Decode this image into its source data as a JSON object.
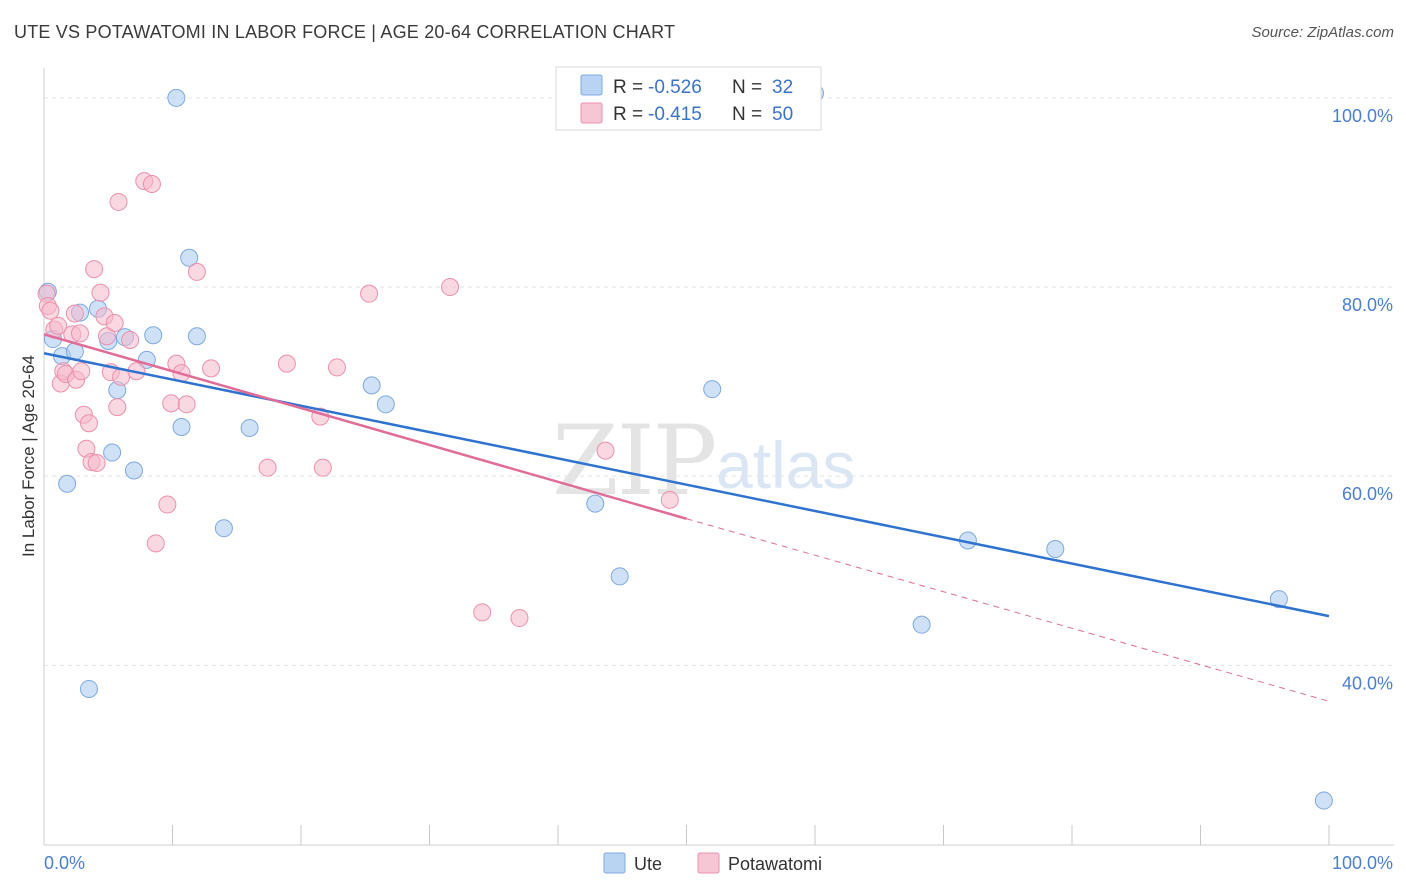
{
  "header": {
    "title": "UTE VS POTAWATOMI IN LABOR FORCE | AGE 20-64 CORRELATION CHART",
    "source": "Source: ZipAtlas.com"
  },
  "watermark": {
    "zip": "ZIP",
    "atlas": "atlas"
  },
  "legend": {
    "items": [
      {
        "r_label": "R = ",
        "r_value": "-0.526",
        "n_label": "N = ",
        "n_value": "32",
        "color": "#a8c8f0"
      },
      {
        "r_label": "R = ",
        "r_value": "-0.415",
        "n_label": "N = ",
        "n_value": "50",
        "color": "#f5b8cb"
      }
    ]
  },
  "chart_data": {
    "type": "scatter",
    "title": "UTE VS POTAWATOMI IN LABOR FORCE | AGE 20-64 CORRELATION CHART",
    "xlabel": "",
    "ylabel": "In Labor Force | Age 20-64",
    "xlim": [
      0,
      100
    ],
    "ylim": [
      21,
      102
    ],
    "x_tick_labels": [
      "0.0%",
      "100.0%"
    ],
    "y_ticks": [
      40,
      60,
      80,
      100
    ],
    "y_tick_labels": [
      "40.0%",
      "60.0%",
      "80.0%",
      "100.0%"
    ],
    "grid": true,
    "series": [
      {
        "name": "Ute",
        "color": "#a8c8f0",
        "stroke": "#7ea9e0",
        "trend_color": "#2f73d0",
        "R": -0.526,
        "N": 32,
        "trend": {
          "x": [
            0,
            100
          ],
          "y": [
            73.0,
            45.2
          ]
        },
        "points": [
          [
            0.3,
            79.5
          ],
          [
            0.7,
            74.5
          ],
          [
            1.4,
            72.7
          ],
          [
            1.8,
            59.2
          ],
          [
            2.4,
            73.2
          ],
          [
            2.8,
            77.3
          ],
          [
            3.5,
            37.5
          ],
          [
            4.2,
            77.7
          ],
          [
            5.0,
            74.3
          ],
          [
            5.3,
            62.5
          ],
          [
            5.7,
            69.1
          ],
          [
            6.3,
            74.7
          ],
          [
            7.0,
            60.6
          ],
          [
            8.0,
            72.3
          ],
          [
            8.5,
            74.9
          ],
          [
            10.3,
            100.0
          ],
          [
            10.7,
            65.2
          ],
          [
            11.3,
            83.1
          ],
          [
            11.9,
            74.8
          ],
          [
            14.0,
            54.5
          ],
          [
            16.0,
            65.1
          ],
          [
            25.5,
            69.6
          ],
          [
            26.6,
            67.6
          ],
          [
            42.9,
            57.1
          ],
          [
            44.8,
            49.4
          ],
          [
            52.0,
            69.2
          ],
          [
            60.0,
            100.5
          ],
          [
            68.3,
            44.3
          ],
          [
            71.9,
            53.2
          ],
          [
            78.7,
            52.3
          ],
          [
            96.1,
            47.0
          ],
          [
            99.6,
            25.7
          ]
        ]
      },
      {
        "name": "Potawatomi",
        "color": "#f5b8cb",
        "stroke": "#ec90ac",
        "trend_color": "#e06c97",
        "R": -0.415,
        "N": 50,
        "trend": {
          "x": [
            0,
            50
          ],
          "y": [
            75.0,
            55.5
          ]
        },
        "trend_dashed": {
          "x": [
            50,
            100
          ],
          "y": [
            55.5,
            36.2
          ]
        },
        "points": [
          [
            0.2,
            79.3
          ],
          [
            0.3,
            78.0
          ],
          [
            0.5,
            77.5
          ],
          [
            0.8,
            75.5
          ],
          [
            1.1,
            75.9
          ],
          [
            1.3,
            69.8
          ],
          [
            1.5,
            71.1
          ],
          [
            1.7,
            70.8
          ],
          [
            2.2,
            75.0
          ],
          [
            2.4,
            77.2
          ],
          [
            2.5,
            70.2
          ],
          [
            2.8,
            75.1
          ],
          [
            2.9,
            71.1
          ],
          [
            3.1,
            66.5
          ],
          [
            3.3,
            62.9
          ],
          [
            3.5,
            65.6
          ],
          [
            3.7,
            61.5
          ],
          [
            3.9,
            81.9
          ],
          [
            4.1,
            61.4
          ],
          [
            4.4,
            79.4
          ],
          [
            4.7,
            76.9
          ],
          [
            4.9,
            74.8
          ],
          [
            5.2,
            71.0
          ],
          [
            5.5,
            76.2
          ],
          [
            5.7,
            67.3
          ],
          [
            6.0,
            70.5
          ],
          [
            6.7,
            74.4
          ],
          [
            7.2,
            71.1
          ],
          [
            5.8,
            89.0
          ],
          [
            7.8,
            91.2
          ],
          [
            8.4,
            90.9
          ],
          [
            8.7,
            52.9
          ],
          [
            9.6,
            57.0
          ],
          [
            9.9,
            67.7
          ],
          [
            10.3,
            71.9
          ],
          [
            10.7,
            70.9
          ],
          [
            11.1,
            67.6
          ],
          [
            11.9,
            81.6
          ],
          [
            13.0,
            71.4
          ],
          [
            17.4,
            60.9
          ],
          [
            18.9,
            71.9
          ],
          [
            21.5,
            66.3
          ],
          [
            21.7,
            60.9
          ],
          [
            22.8,
            71.5
          ],
          [
            25.3,
            79.3
          ],
          [
            31.6,
            80.0
          ],
          [
            34.1,
            45.6
          ],
          [
            37.0,
            45.0
          ],
          [
            43.7,
            62.7
          ],
          [
            48.7,
            57.5
          ]
        ]
      }
    ]
  }
}
